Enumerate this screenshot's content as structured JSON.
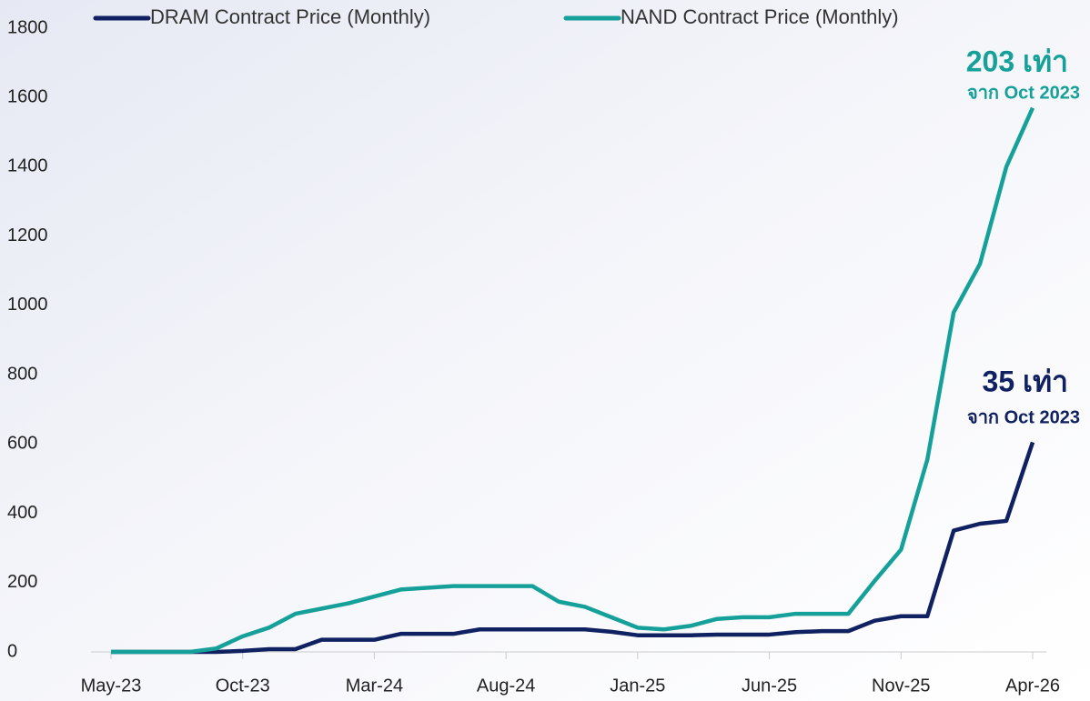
{
  "chart_data": {
    "type": "line",
    "categories": [
      "May-23",
      null,
      null,
      null,
      null,
      "Oct-23",
      null,
      null,
      null,
      null,
      "Mar-24",
      null,
      null,
      null,
      null,
      "Aug-24",
      null,
      null,
      null,
      null,
      "Jan-25",
      null,
      null,
      null,
      null,
      "Jun-25",
      null,
      null,
      null,
      null,
      "Nov-25",
      null,
      null,
      null,
      null,
      "Apr-26"
    ],
    "series": [
      {
        "name": "DRAM Contract Price (Monthly)",
        "color": "#0f2160",
        "values": [
          0,
          0,
          0,
          0,
          0,
          3,
          8,
          8,
          35,
          35,
          35,
          52,
          52,
          52,
          65,
          65,
          65,
          65,
          65,
          58,
          48,
          48,
          48,
          50,
          50,
          50,
          57,
          60,
          60,
          90,
          103,
          103,
          350,
          370,
          378,
          605
        ]
      },
      {
        "name": "NAND Contract Price (Monthly)",
        "color": "#16a09a",
        "values": [
          0,
          0,
          0,
          0,
          10,
          45,
          70,
          110,
          125,
          140,
          160,
          180,
          185,
          190,
          190,
          190,
          190,
          145,
          130,
          100,
          70,
          65,
          75,
          95,
          100,
          100,
          110,
          110,
          110,
          205,
          295,
          555,
          980,
          1120,
          1400,
          1570
        ]
      }
    ],
    "annotations": [
      {
        "title": "203 เท่า",
        "text": "จาก Oct 2023",
        "color": "#16a09a"
      },
      {
        "title": "35 เท่า",
        "text": "จาก Oct 2023",
        "color": "#0f2160"
      }
    ],
    "ylim": [
      0,
      1800
    ],
    "yticks": [
      0,
      200,
      400,
      600,
      800,
      1000,
      1200,
      1400,
      1600,
      1800
    ]
  }
}
